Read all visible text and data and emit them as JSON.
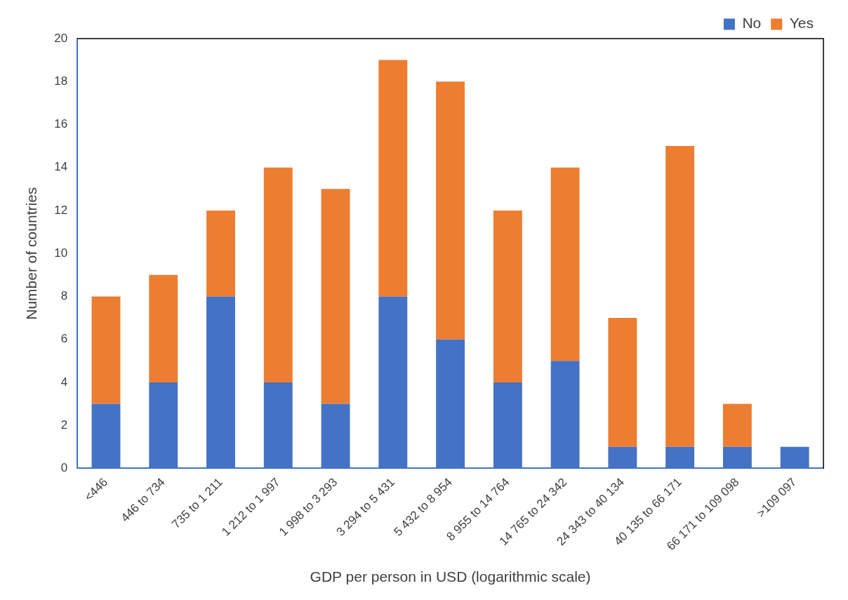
{
  "chart_data": {
    "type": "bar",
    "stacked": true,
    "xlabel": "GDP per person in USD (logarithmic scale)",
    "ylabel": "Number of countries",
    "categories": [
      "<446",
      "446 to 734",
      "735 to 1 211",
      "1 212 to 1 997",
      "1 998 to 3 293",
      "3 294 to 5 431",
      "5 432 to 8 954",
      "8 955 to 14 764",
      "14 765 to 24 342",
      "24 343 to 40 134",
      "40 135 to 66 171",
      "66 171 to 109 098",
      ">109 097"
    ],
    "series": [
      {
        "name": "No",
        "color": "#4472c4",
        "values": [
          3,
          4,
          8,
          4,
          3,
          8,
          6,
          4,
          5,
          1,
          1,
          1,
          1
        ]
      },
      {
        "name": "Yes",
        "color": "#ed7d31",
        "values": [
          5,
          5,
          4,
          10,
          10,
          11,
          12,
          8,
          9,
          6,
          14,
          2,
          0
        ]
      }
    ],
    "ylim": [
      0,
      20
    ],
    "yticks": [
      0,
      2,
      4,
      6,
      8,
      10,
      12,
      14,
      16,
      18,
      20
    ],
    "grid": false,
    "legend": "top right"
  }
}
